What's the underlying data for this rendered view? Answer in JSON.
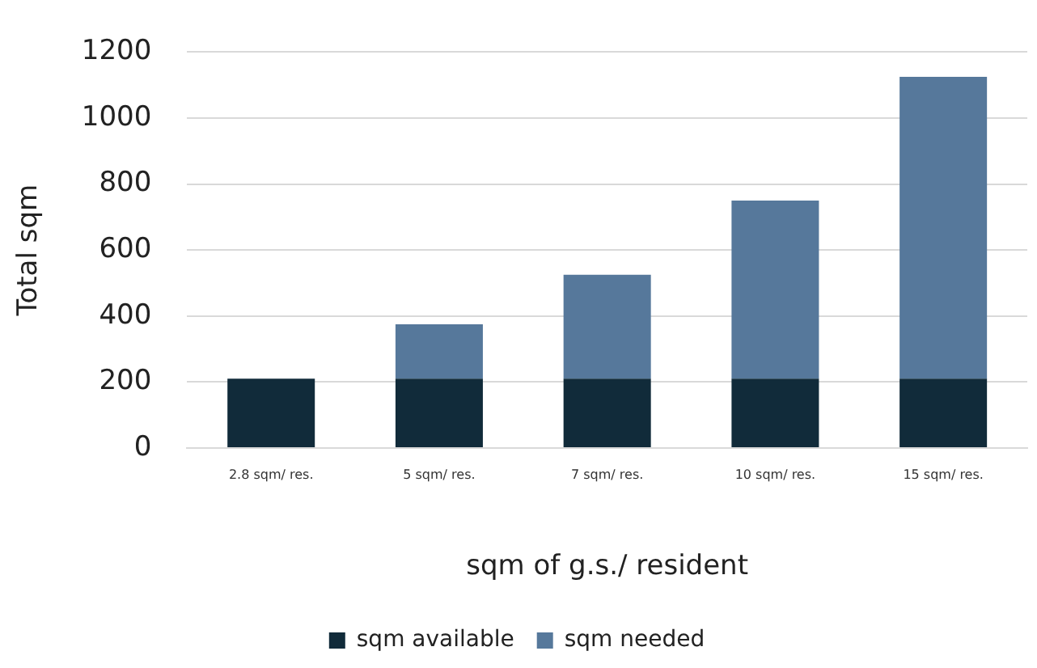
{
  "chart_data": {
    "type": "bar",
    "stacked": true,
    "xlabel": "sqm of g.s./ resident",
    "ylabel": "Total sqm",
    "categories": [
      "2.8 sqm/ res.",
      "5 sqm/ res.",
      "7 sqm/ res.",
      "10 sqm/ res.",
      "15 sqm/ res."
    ],
    "series": [
      {
        "name": "sqm available",
        "color": "#112b3a",
        "values": [
          210,
          210,
          210,
          210,
          210
        ]
      },
      {
        "name": "sqm needed",
        "color": "#56789b",
        "values": [
          0,
          165,
          315,
          540,
          915
        ]
      }
    ],
    "ylim": [
      0,
      1200
    ],
    "yticks": [
      0,
      200,
      400,
      600,
      800,
      1000,
      1200
    ],
    "grid": "y",
    "legend": "bottom"
  }
}
